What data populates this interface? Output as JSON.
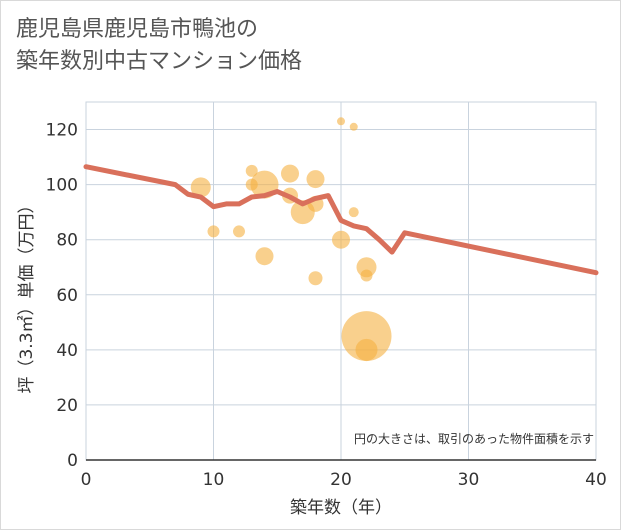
{
  "chart_data": {
    "type": "scatter",
    "title": "鹿児島県鹿児島市鴨池の\n築年数別中古マンション価格",
    "xlabel": "築年数（年）",
    "ylabel": "坪（3.3㎡）単価（万円）",
    "xlim": [
      0,
      40
    ],
    "ylim": [
      0,
      130
    ],
    "xticks": [
      0,
      10,
      20,
      30,
      40
    ],
    "yticks": [
      0,
      20,
      40,
      60,
      80,
      100,
      120
    ],
    "grid": true,
    "note": "円の大きさは、取引のあった物件面積を示す",
    "colors": {
      "bubble": "#f5b041",
      "line": "#d9705b",
      "grid": "#c9d3de"
    },
    "points": [
      {
        "x": 9,
        "y": 99,
        "size": 10
      },
      {
        "x": 10,
        "y": 83,
        "size": 6
      },
      {
        "x": 12,
        "y": 83,
        "size": 6
      },
      {
        "x": 13,
        "y": 105,
        "size": 6
      },
      {
        "x": 13,
        "y": 100,
        "size": 6
      },
      {
        "x": 14,
        "y": 100,
        "size": 14
      },
      {
        "x": 14,
        "y": 74,
        "size": 9
      },
      {
        "x": 16,
        "y": 104,
        "size": 9
      },
      {
        "x": 16,
        "y": 96,
        "size": 8
      },
      {
        "x": 17,
        "y": 90,
        "size": 12
      },
      {
        "x": 18,
        "y": 102,
        "size": 9
      },
      {
        "x": 18,
        "y": 93,
        "size": 8
      },
      {
        "x": 18,
        "y": 66,
        "size": 7
      },
      {
        "x": 20,
        "y": 123,
        "size": 4
      },
      {
        "x": 20,
        "y": 80,
        "size": 9
      },
      {
        "x": 21,
        "y": 121,
        "size": 4
      },
      {
        "x": 21,
        "y": 90,
        "size": 5
      },
      {
        "x": 22,
        "y": 70,
        "size": 10
      },
      {
        "x": 22,
        "y": 67,
        "size": 6
      },
      {
        "x": 22,
        "y": 45,
        "size": 25
      },
      {
        "x": 22,
        "y": 40,
        "size": 11
      }
    ],
    "trend": {
      "x": [
        0,
        7,
        8,
        9,
        10,
        11,
        12,
        13,
        14,
        15,
        16,
        17,
        18,
        19,
        20,
        21,
        22,
        23,
        24,
        25,
        40
      ],
      "y": [
        106.5,
        100,
        96.5,
        95.5,
        92,
        93,
        93,
        95.5,
        96,
        97.5,
        95.5,
        93,
        95,
        96,
        87,
        85,
        84,
        80,
        75.5,
        82.5,
        68
      ]
    }
  }
}
